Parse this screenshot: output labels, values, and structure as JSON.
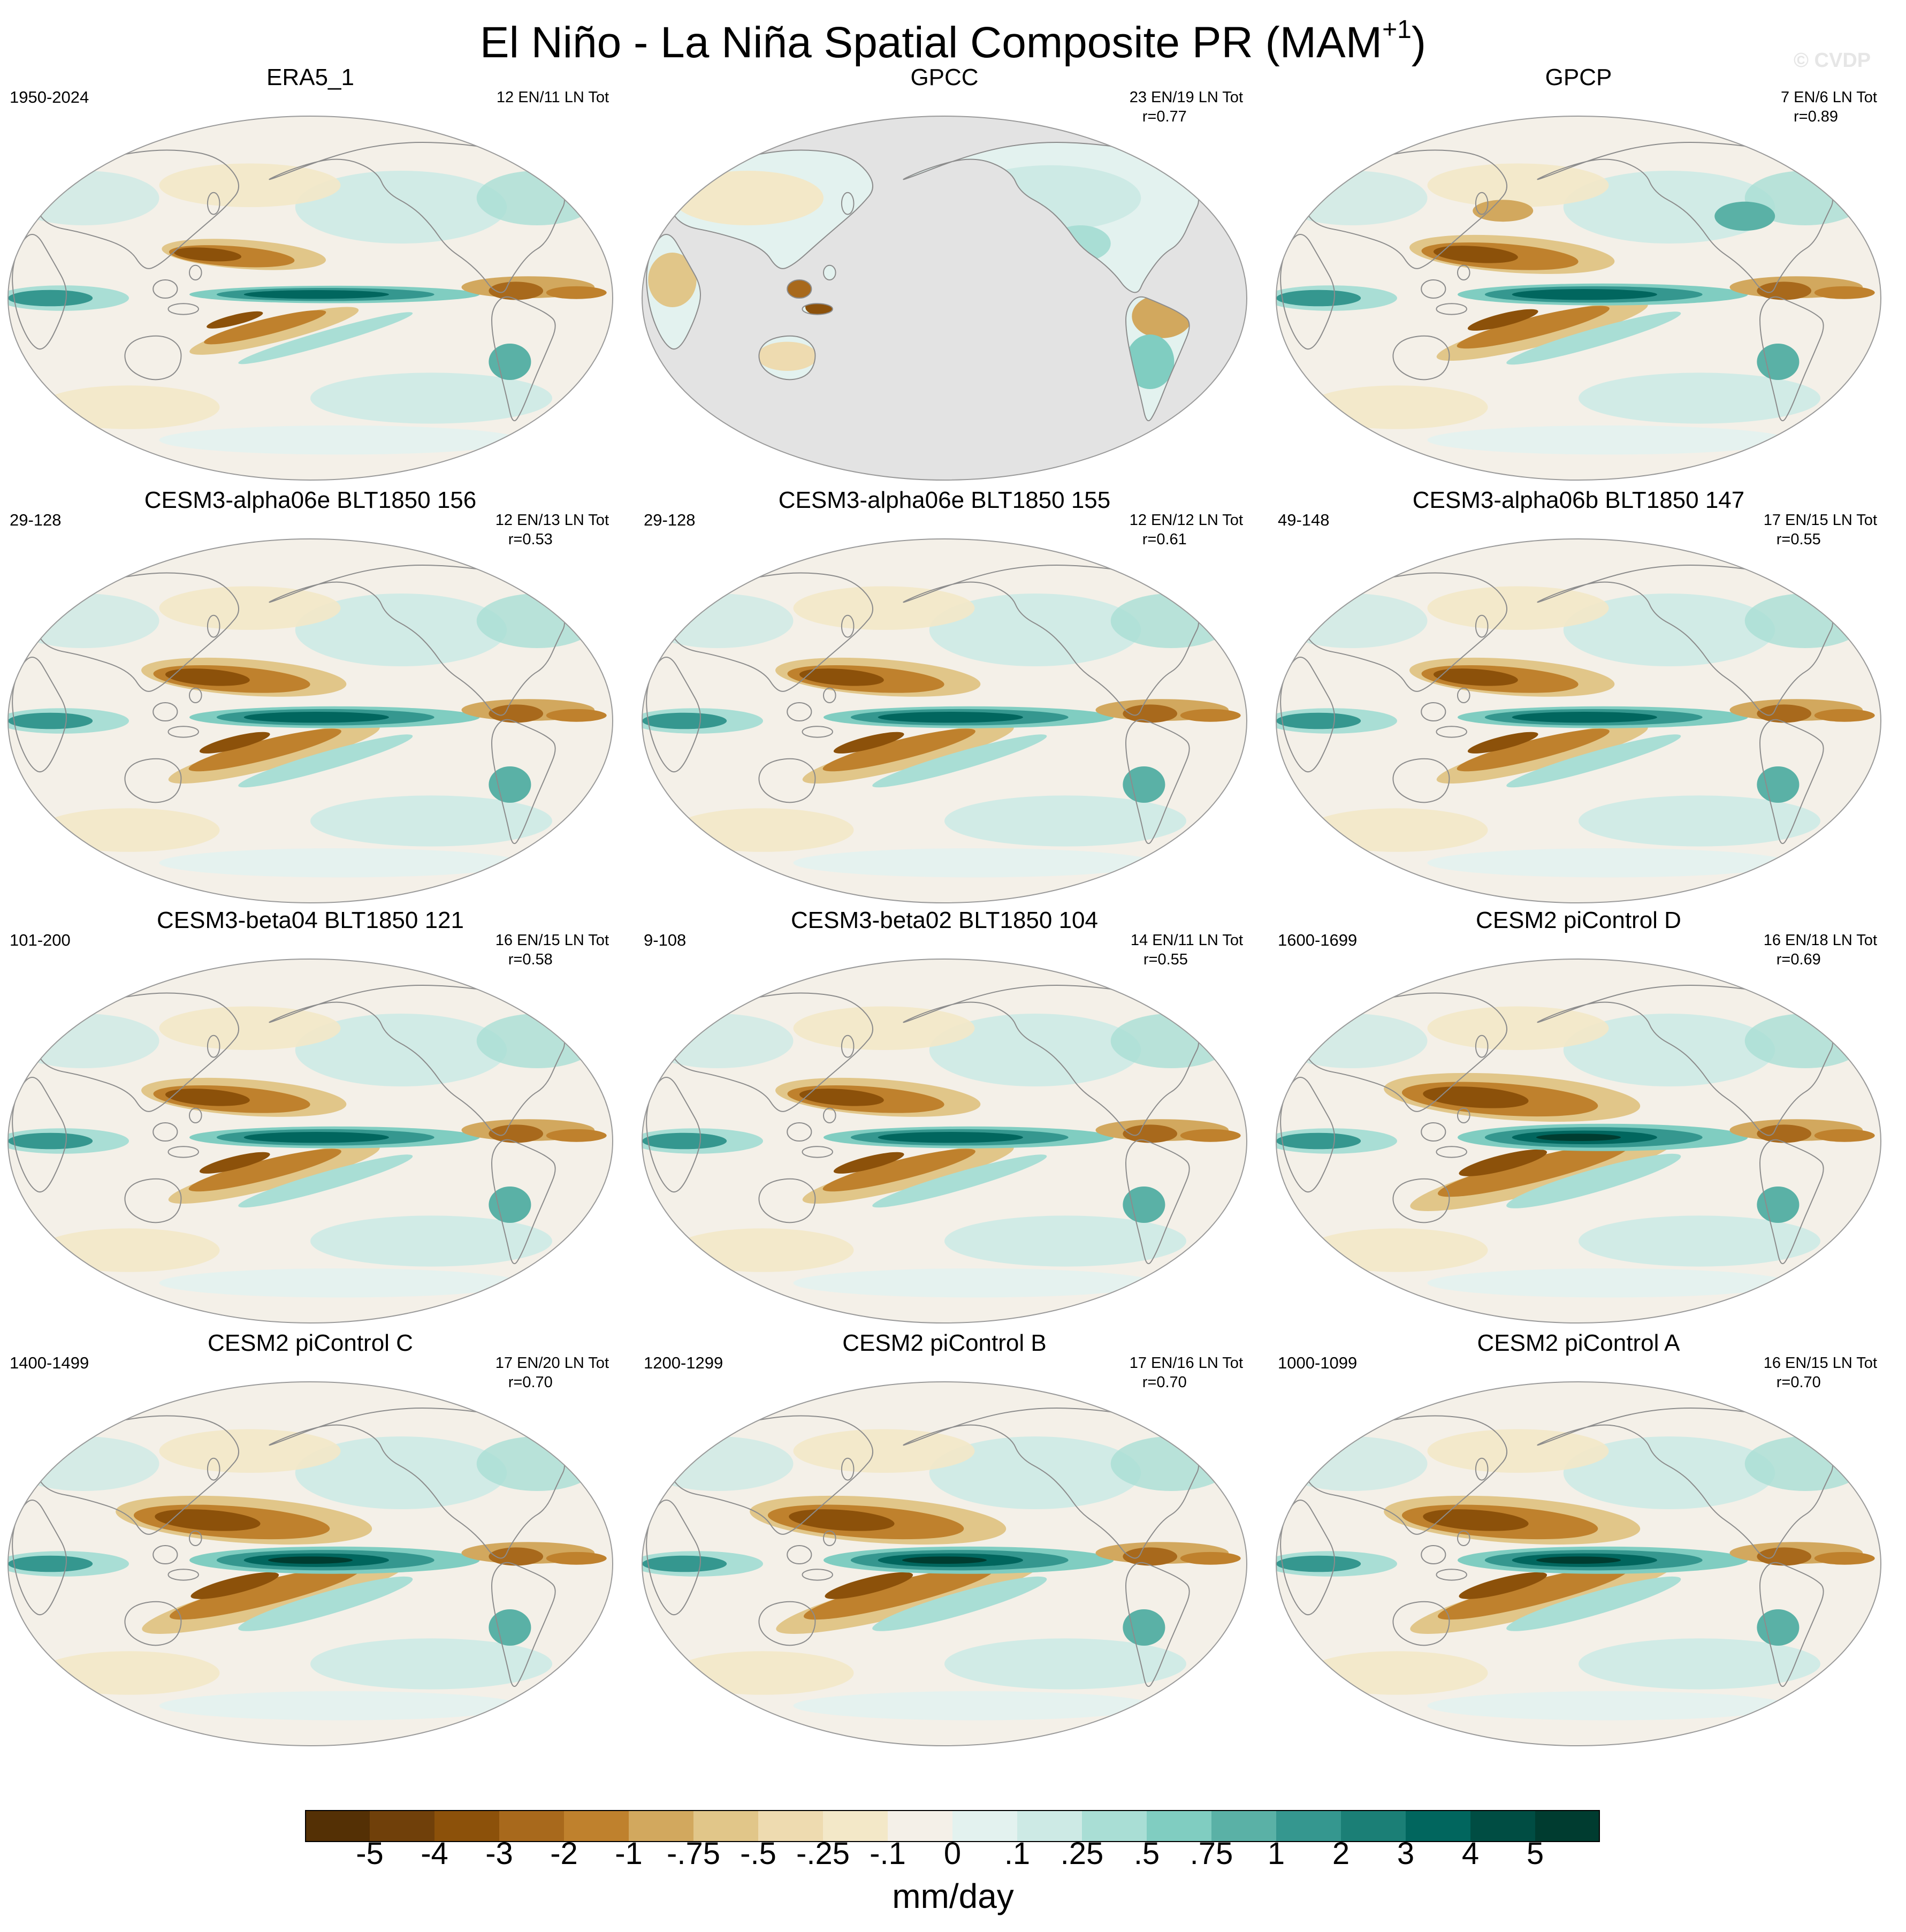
{
  "title": {
    "main": "El Niño - La Niña Spatial Composite PR (MAM",
    "superscript": "+1",
    "close": ")"
  },
  "watermark": "© CVDP",
  "colors": {
    "ocean_missing": "#e3e3e3",
    "coast": "#8c8c8c",
    "border": "#9a9a9a"
  },
  "panels": [
    {
      "id": "era5",
      "title": "ERA5_1",
      "years": "1950-2024",
      "counts": "12 EN/11 LN Tot",
      "corr": "",
      "style": 0
    },
    {
      "id": "gpcc",
      "title": "GPCC",
      "years": "",
      "counts": "23 EN/19 LN Tot",
      "corr": "r=0.77",
      "style": 1
    },
    {
      "id": "gpcp",
      "title": "GPCP",
      "years": "",
      "counts": "7 EN/6 LN Tot",
      "corr": "r=0.89",
      "style": 2
    },
    {
      "id": "a06e156",
      "title": "CESM3-alpha06e BLT1850 156",
      "years": "29-128",
      "counts": "12 EN/13 LN Tot",
      "corr": "r=0.53",
      "style": 3
    },
    {
      "id": "a06e155",
      "title": "CESM3-alpha06e BLT1850 155",
      "years": "29-128",
      "counts": "12 EN/12 LN Tot",
      "corr": "r=0.61",
      "style": 3
    },
    {
      "id": "a06b147",
      "title": "CESM3-alpha06b BLT1850 147",
      "years": "49-148",
      "counts": "17 EN/15 LN Tot",
      "corr": "r=0.55",
      "style": 3
    },
    {
      "id": "b04",
      "title": "CESM3-beta04 BLT1850 121",
      "years": "101-200",
      "counts": "16 EN/15 LN Tot",
      "corr": "r=0.58",
      "style": 3
    },
    {
      "id": "b02",
      "title": "CESM3-beta02 BLT1850 104",
      "years": "9-108",
      "counts": "14 EN/11 LN Tot",
      "corr": "r=0.55",
      "style": 3
    },
    {
      "id": "picD",
      "title": "CESM2 piControl D",
      "years": "1600-1699",
      "counts": "16 EN/18 LN Tot",
      "corr": "r=0.69",
      "style": 4
    },
    {
      "id": "picC",
      "title": "CESM2 piControl C",
      "years": "1400-1499",
      "counts": "17 EN/20 LN Tot",
      "corr": "r=0.70",
      "style": 4
    },
    {
      "id": "picB",
      "title": "CESM2 piControl B",
      "years": "1200-1299",
      "counts": "17 EN/16 LN Tot",
      "corr": "r=0.70",
      "style": 4
    },
    {
      "id": "picA",
      "title": "CESM2 piControl A",
      "years": "1000-1099",
      "counts": "16 EN/15 LN Tot",
      "corr": "r=0.70",
      "style": 4
    }
  ],
  "colorbar": {
    "colors": [
      "#543005",
      "#70400a",
      "#8c510a",
      "#a8691c",
      "#bf812d",
      "#d2a85e",
      "#e1c689",
      "#eedbb0",
      "#f3e8c8",
      "#f4f0e8",
      "#e3f2ef",
      "#cdeae5",
      "#a9ded5",
      "#80cdc1",
      "#5ab1a6",
      "#35978f",
      "#1b7f76",
      "#01665e",
      "#004d43",
      "#003c30"
    ],
    "labels": [
      "-5",
      "-4",
      "-3",
      "-2",
      "-1",
      "-.75",
      "-.5",
      "-.25",
      "-.1",
      "0",
      ".1",
      ".25",
      ".5",
      ".75",
      "1",
      "2",
      "3",
      "4",
      "5"
    ],
    "units": "mm/day"
  }
}
